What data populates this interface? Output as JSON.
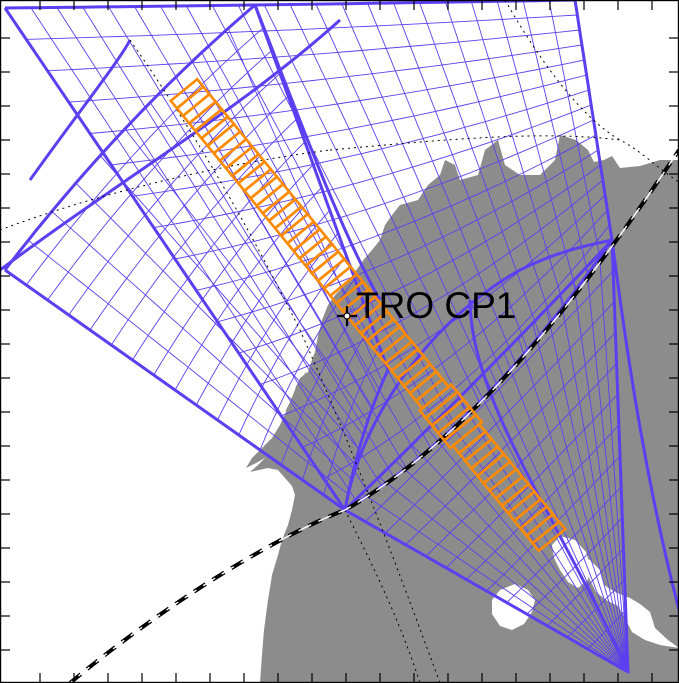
{
  "map": {
    "colors": {
      "land": "#8c8c8c",
      "fov": "#5b3ff0",
      "track": "#ff8a00",
      "frame": "#000000",
      "terminator": "#000000"
    },
    "layers": [
      "land",
      "radar-fov-grid",
      "dotted-graticule",
      "dashed-terminator",
      "track-cells",
      "station-marker"
    ],
    "station": {
      "label": "TRO CP1",
      "marker": "plus-icon"
    },
    "track": {
      "segments": 60
    }
  }
}
